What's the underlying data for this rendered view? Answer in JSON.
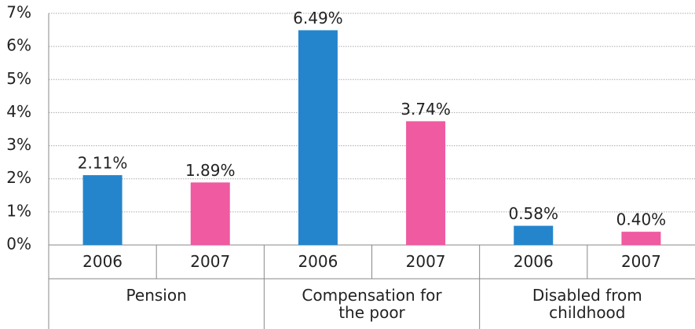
{
  "chart_data": {
    "type": "bar",
    "categories": [
      "Pension",
      "Compensation for the poor",
      "Disabled from childhood"
    ],
    "series": [
      {
        "name": "2006",
        "color": "#2585cc",
        "values": [
          2.11,
          6.49,
          0.58
        ],
        "value_labels": [
          "2.11%",
          "6.49%",
          "0.58%"
        ]
      },
      {
        "name": "2007",
        "color": "#ef5aa1",
        "values": [
          1.89,
          3.74,
          0.4
        ],
        "value_labels": [
          "1.89%",
          "3.74%",
          "0.40%"
        ]
      }
    ],
    "ylim": [
      0,
      7
    ],
    "yticks": [
      {
        "value": 0,
        "label": "0%"
      },
      {
        "value": 1,
        "label": "1%"
      },
      {
        "value": 2,
        "label": "2%"
      },
      {
        "value": 3,
        "label": "3%"
      },
      {
        "value": 4,
        "label": "4%"
      },
      {
        "value": 5,
        "label": "5%"
      },
      {
        "value": 6,
        "label": "6%"
      },
      {
        "value": 7,
        "label": "7%"
      }
    ],
    "grid": true
  }
}
